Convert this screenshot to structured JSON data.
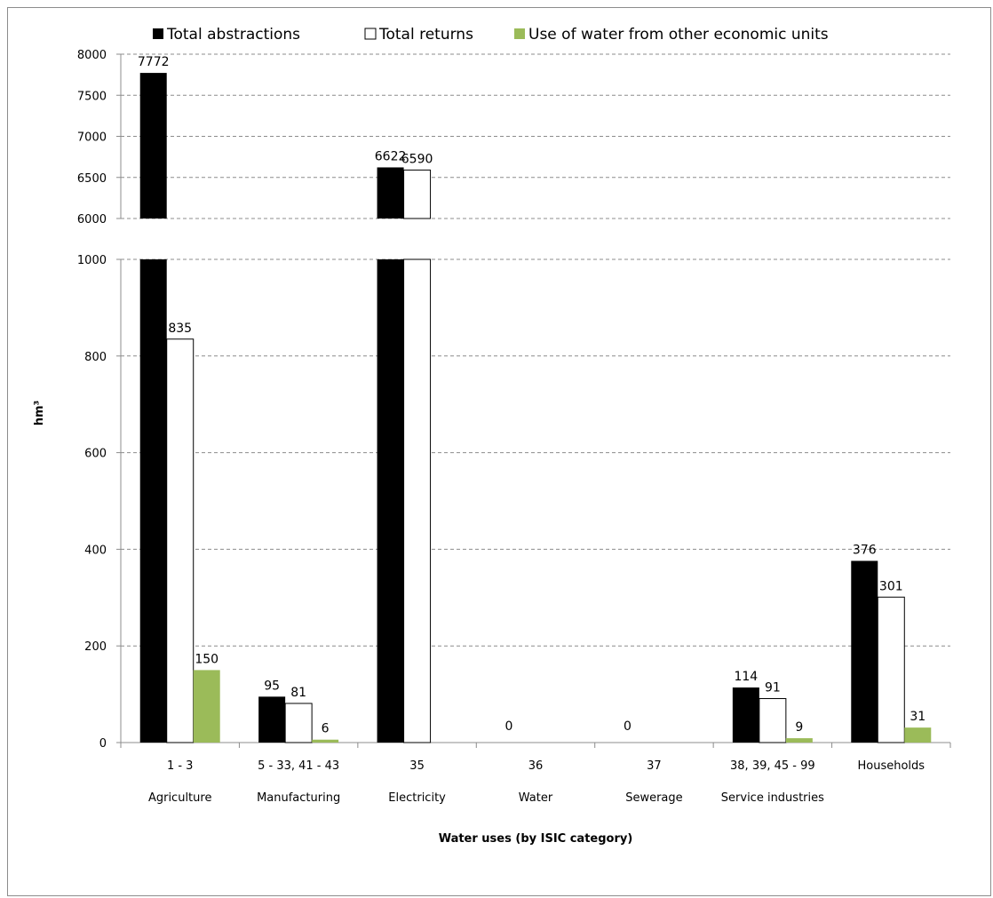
{
  "chart_data": {
    "type": "bar",
    "title": "",
    "xlabel": "Water uses (by ISIC category)",
    "ylabel": "hm³",
    "legend_position": "top",
    "grid": true,
    "y_axis_break": {
      "lower_range": [
        0,
        1000
      ],
      "upper_range": [
        6000,
        8000
      ]
    },
    "lower_ticks": [
      "0",
      "200",
      "400",
      "600",
      "800",
      "1000"
    ],
    "upper_ticks": [
      "6000",
      "6500",
      "7000",
      "7500",
      "8000"
    ],
    "categories": [
      {
        "code": "1 - 3",
        "name": "Agriculture"
      },
      {
        "code": "5 - 33, 41 - 43",
        "name": "Manufacturing"
      },
      {
        "code": "35",
        "name": "Electricity"
      },
      {
        "code": "36",
        "name": "Water"
      },
      {
        "code": "37",
        "name": "Sewerage"
      },
      {
        "code": "38, 39, 45 - 99",
        "name": "Service industries"
      },
      {
        "code": "Households",
        "name": ""
      }
    ],
    "series": [
      {
        "name": "Total abstractions",
        "color": "#000000",
        "values": [
          7772,
          95,
          6622,
          0,
          0,
          114,
          376
        ],
        "labels": [
          "7772",
          "95",
          "6622",
          "0",
          "0",
          "114",
          "376"
        ]
      },
      {
        "name": "Total returns",
        "color": "#ffffff",
        "values": [
          835,
          81,
          6590,
          0,
          0,
          91,
          301
        ],
        "labels": [
          "835",
          "81",
          "6590",
          "",
          "",
          "91",
          "301"
        ]
      },
      {
        "name": "Use of water from other economic units",
        "color": "#9bbb59",
        "values": [
          150,
          6,
          0,
          0,
          0,
          9,
          31
        ],
        "labels": [
          "150",
          "6",
          "",
          "",
          "",
          "9",
          "31"
        ]
      }
    ]
  }
}
